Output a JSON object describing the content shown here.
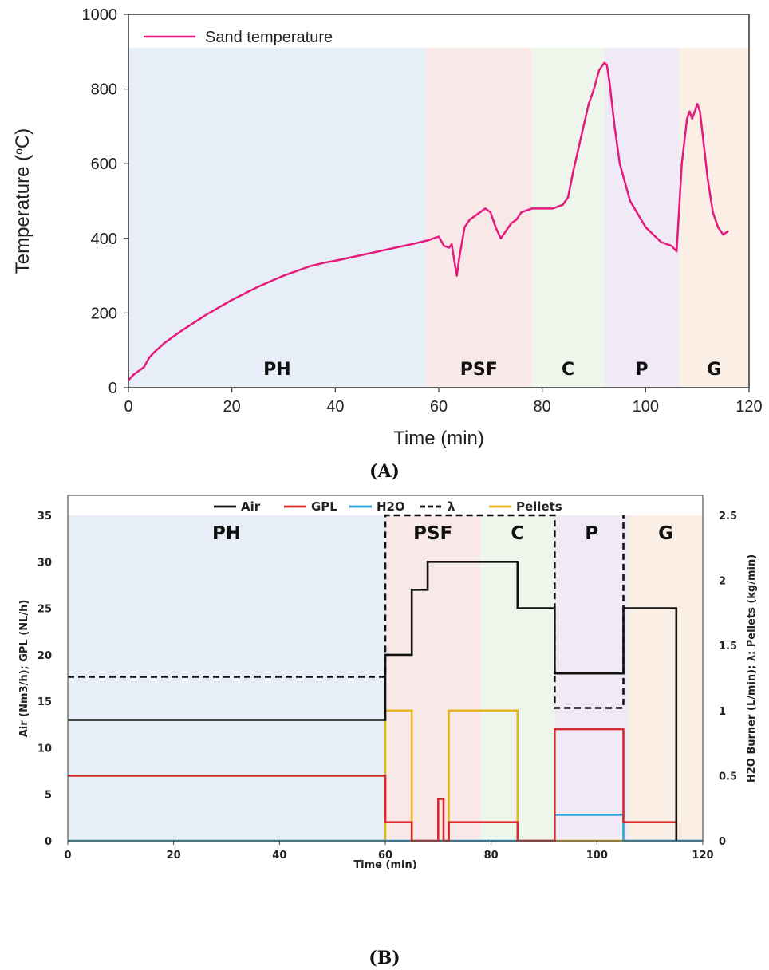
{
  "captions": {
    "a": "(A)",
    "b": "(B)"
  },
  "chart_data": [
    {
      "type": "line",
      "xlabel": "Time (min)",
      "ylabel_main": "Temperature (",
      "ylabel_sup": "o",
      "ylabel_end": "C)",
      "xlim": [
        0,
        120
      ],
      "ylim": [
        0,
        1000
      ],
      "xticks": [
        0,
        20,
        40,
        60,
        80,
        100,
        120
      ],
      "yticks": [
        0,
        200,
        400,
        600,
        800,
        1000
      ],
      "legend_position": "top-left",
      "phases": [
        {
          "label": "PH",
          "start": 0,
          "end": 57.5,
          "color": "#e8eef7"
        },
        {
          "label": "PSF",
          "start": 57.5,
          "end": 78,
          "color": "#f8e8e8"
        },
        {
          "label": "C",
          "start": 78,
          "end": 92,
          "color": "#eef5ea"
        },
        {
          "label": "P",
          "start": 92,
          "end": 106.5,
          "color": "#efeaf5"
        },
        {
          "label": "G",
          "start": 106.5,
          "end": 120,
          "color": "#fbeee4"
        }
      ],
      "phase_top": 910,
      "series": [
        {
          "name": "Sand temperature",
          "color": "#e6197d",
          "x": [
            0,
            1,
            2,
            3,
            4,
            5,
            7,
            10,
            15,
            20,
            25,
            30,
            35,
            38,
            40,
            45,
            50,
            55,
            58,
            60,
            61,
            62,
            62.5,
            63,
            63.5,
            64,
            65,
            66,
            67,
            68,
            69,
            70,
            71,
            72,
            73,
            74,
            75,
            76,
            78,
            80,
            82,
            84,
            85,
            86,
            88,
            89,
            90,
            91,
            92,
            92.5,
            93,
            94,
            95,
            97,
            100,
            103,
            105,
            106,
            107,
            108,
            108.5,
            109,
            110,
            110.5,
            111,
            112,
            113,
            114,
            115,
            116
          ],
          "y": [
            20,
            35,
            45,
            55,
            80,
            95,
            120,
            150,
            195,
            235,
            270,
            300,
            325,
            335,
            340,
            355,
            370,
            385,
            395,
            405,
            380,
            375,
            385,
            340,
            300,
            350,
            430,
            450,
            460,
            470,
            480,
            470,
            430,
            400,
            420,
            440,
            450,
            470,
            480,
            480,
            480,
            490,
            510,
            580,
            700,
            760,
            800,
            850,
            870,
            865,
            820,
            700,
            600,
            500,
            430,
            390,
            380,
            365,
            600,
            720,
            740,
            720,
            760,
            740,
            680,
            560,
            470,
            430,
            410,
            420
          ]
        }
      ]
    },
    {
      "type": "line",
      "xlabel": "Time (min)",
      "ylabel_left": "Air (Nm3/h);  GPL (NL/h)",
      "ylabel_right": "H2O Burner (L/min);  λ:  Pellets (kg/min)",
      "xlim": [
        0,
        120
      ],
      "ylim_left": [
        0,
        35
      ],
      "ylim_right": [
        0,
        2.5
      ],
      "xticks": [
        0,
        20,
        40,
        60,
        80,
        100,
        120
      ],
      "yticks_left": [
        0,
        5,
        10,
        15,
        20,
        25,
        30,
        35
      ],
      "yticks_right": [
        "0",
        "0.5",
        "1",
        "1.5",
        "2",
        "2.5"
      ],
      "legend_position": "top-center",
      "phases": [
        {
          "label": "PH",
          "start": 0,
          "end": 60,
          "color": "#e8eef7"
        },
        {
          "label": "PSF",
          "start": 60,
          "end": 78,
          "color": "#f8e8e8"
        },
        {
          "label": "C",
          "start": 78,
          "end": 92,
          "color": "#eef5ea"
        },
        {
          "label": "P",
          "start": 92,
          "end": 106,
          "color": "#efeaf5"
        },
        {
          "label": "G",
          "start": 106,
          "end": 120,
          "color": "#fbeee4"
        }
      ],
      "series": [
        {
          "name": "Air",
          "color": "#111111",
          "axis": "left",
          "dash": false,
          "x": [
            0,
            60,
            60,
            65,
            65,
            68,
            68,
            85,
            85,
            92,
            92,
            105,
            105,
            115,
            115
          ],
          "y": [
            13,
            13,
            20,
            20,
            27,
            27,
            30,
            30,
            25,
            25,
            18,
            18,
            25,
            25,
            0
          ]
        },
        {
          "name": "GPL",
          "color": "#d42a2a",
          "axis": "left",
          "dash": false,
          "x": [
            0,
            60,
            60,
            65,
            65,
            70,
            70,
            71,
            71,
            72,
            72,
            85,
            85,
            92,
            92,
            105,
            105,
            115,
            115
          ],
          "y": [
            7,
            7,
            2,
            2,
            0,
            0,
            4.5,
            4.5,
            0,
            0,
            2,
            2,
            0,
            0,
            12,
            12,
            2,
            2,
            0
          ]
        },
        {
          "name": "H2O",
          "color": "#29a3dc",
          "axis": "right",
          "dash": false,
          "x": [
            0,
            92,
            92,
            105,
            105,
            120
          ],
          "y": [
            0,
            0,
            0.2,
            0.2,
            0,
            0
          ]
        },
        {
          "name": "λ",
          "color": "#111111",
          "axis": "right",
          "dash": true,
          "x": [
            0,
            60,
            60,
            92,
            92,
            105,
            105
          ],
          "y": [
            1.26,
            1.26,
            2.5,
            2.5,
            1.02,
            1.02,
            2.5
          ]
        },
        {
          "name": "Pellets",
          "color": "#e6b41f",
          "axis": "right",
          "dash": false,
          "x": [
            0,
            60,
            60,
            65,
            65,
            72,
            72,
            85,
            85,
            120
          ],
          "y": [
            0,
            0,
            1,
            1,
            0,
            0,
            1,
            1,
            0,
            0
          ]
        }
      ]
    }
  ]
}
